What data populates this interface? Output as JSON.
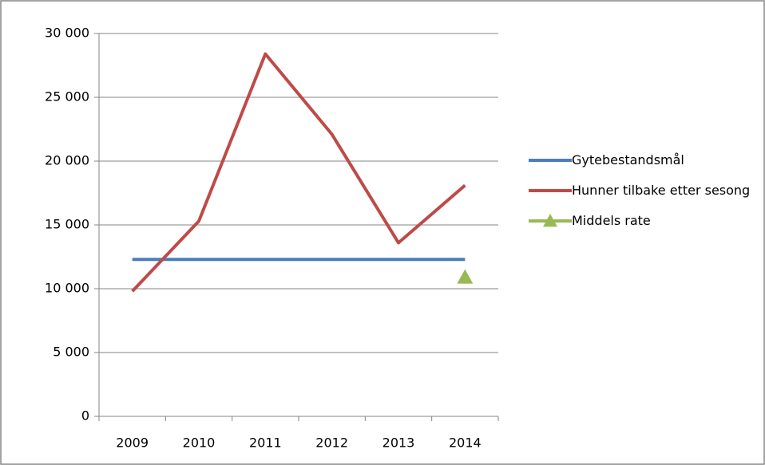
{
  "chart_data": {
    "type": "line",
    "categories": [
      "2009",
      "2010",
      "2011",
      "2012",
      "2013",
      "2014"
    ],
    "series": [
      {
        "name": "Gytebestandsmål",
        "color": "#4a7ebb",
        "values": [
          12300,
          12300,
          12300,
          12300,
          12300,
          12300
        ]
      },
      {
        "name": "Hunner tilbake etter sesong",
        "color": "#be4b48",
        "values": [
          9800,
          15300,
          28400,
          22100,
          13600,
          18100
        ]
      },
      {
        "name": "Middels rate",
        "color": "#98b954",
        "marker": "triangle",
        "values": [
          null,
          null,
          null,
          null,
          null,
          10900
        ]
      }
    ],
    "ylim": [
      0,
      30000
    ],
    "yticks": [
      0,
      {
        "value": 5000,
        "label": "5 000"
      },
      {
        "value": 10000,
        "label": "10 000"
      },
      {
        "value": 15000,
        "label": "15 000"
      },
      {
        "value": 20000,
        "label": "20 000"
      },
      {
        "value": 25000,
        "label": "25 000"
      },
      {
        "value": 30000,
        "label": "30 000"
      }
    ],
    "grid": true,
    "legend": "right"
  }
}
